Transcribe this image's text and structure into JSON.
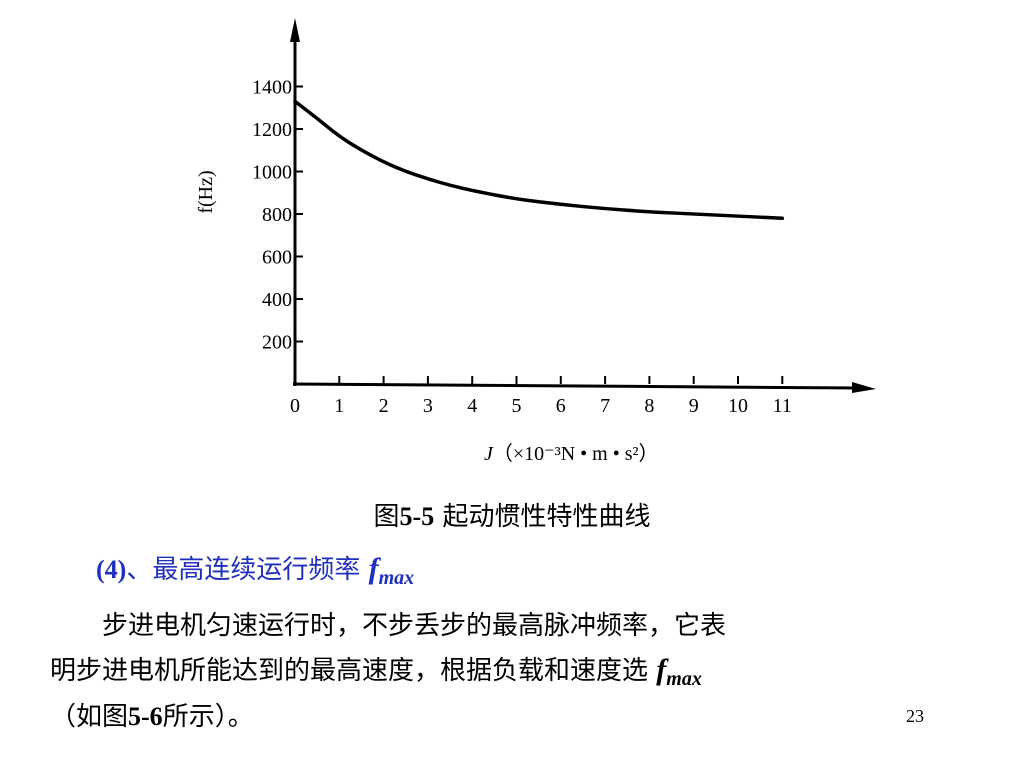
{
  "chart_data": {
    "type": "line",
    "title": "",
    "ylabel": "f(Hz)",
    "xlabel_var": "J",
    "xlabel_unit": "（×10⁻³N • m • s²）",
    "x_ticks": [
      0,
      1,
      2,
      3,
      4,
      5,
      6,
      7,
      8,
      9,
      10,
      11
    ],
    "y_ticks": [
      200,
      400,
      600,
      800,
      1000,
      1200,
      1400
    ],
    "xlim": [
      0,
      11
    ],
    "ylim": [
      0,
      1400
    ],
    "series": [
      {
        "x": [
          0,
          0.5,
          1,
          1.5,
          2,
          2.5,
          3,
          3.5,
          4,
          5,
          6,
          7,
          8,
          9,
          10,
          11
        ],
        "y": [
          1330,
          1250,
          1165,
          1100,
          1045,
          1000,
          965,
          935,
          910,
          870,
          845,
          825,
          810,
          800,
          790,
          780
        ]
      }
    ],
    "grid": false,
    "color": "#000000"
  },
  "caption": {
    "prefix": "图",
    "number": "5-5",
    "text": " 起动惯性特性曲线"
  },
  "heading": {
    "number": "(4)",
    "text": "、最高连续运行频率 ",
    "symbol": "f",
    "subscript": "max"
  },
  "paragraph": {
    "line1": "步进电机匀速运行时，不步丢步的最高脉冲频率，它表",
    "line2_text": "明步进电机所能达到的最高速度，根据负载和速度选 ",
    "line2_symbol": "f",
    "line2_subscript": "max",
    "line3_open": "（如图",
    "line3_ref": "5-6",
    "line3_close": "所示）。"
  },
  "page_number": "23"
}
